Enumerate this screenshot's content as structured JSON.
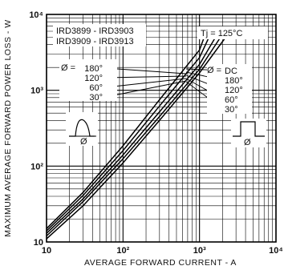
{
  "chart_data": {
    "type": "line",
    "title": "",
    "xlabel": "AVERAGE FORWARD CURRENT - A",
    "ylabel": "MAXIMUM AVERAGE FORWARD POWER LOSS - W",
    "x_scale": "log",
    "y_scale": "log",
    "xlim": [
      10,
      10000
    ],
    "ylim": [
      10,
      10000
    ],
    "grid": true,
    "x_ticks": [
      "10",
      "10²",
      "10³",
      "10⁴"
    ],
    "y_ticks": [
      "10",
      "10²",
      "10³",
      "10⁴"
    ],
    "annotations": {
      "device_line1": "IRD3899 - IRD3903",
      "device_line2": "IRD3909 - IRD3913",
      "temperature": "Tj = 125°C",
      "phi_left": "Ø =",
      "phi_right": "Ø =",
      "waveform_left_label": "Ø",
      "waveform_right_label": "Ø"
    },
    "left_group_labels": [
      "180°",
      "120°",
      "60°",
      "30°"
    ],
    "right_group_labels": [
      "DC",
      "180°",
      "120°",
      "60°",
      "30°"
    ],
    "series": [
      {
        "name": "DC",
        "x": [
          10,
          30,
          100,
          300,
          1000,
          2200
        ],
        "y": [
          11,
          30,
          110,
          400,
          1700,
          5000
        ]
      },
      {
        "name": "180°",
        "x": [
          10,
          30,
          100,
          300,
          1000,
          2000
        ],
        "y": [
          12,
          34,
          125,
          450,
          1900,
          5500
        ]
      },
      {
        "name": "120°",
        "x": [
          10,
          30,
          100,
          300,
          1000,
          1800
        ],
        "y": [
          13,
          37,
          140,
          520,
          2200,
          6000
        ]
      },
      {
        "name": "60°",
        "x": [
          10,
          30,
          100,
          300,
          1000,
          1500
        ],
        "y": [
          14,
          41,
          160,
          620,
          2700,
          6500
        ]
      },
      {
        "name": "30°",
        "x": [
          10,
          30,
          100,
          300,
          1000,
          1300
        ],
        "y": [
          15,
          45,
          185,
          750,
          3400,
          7000
        ]
      }
    ]
  }
}
